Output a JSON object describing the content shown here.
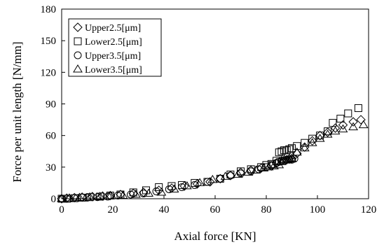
{
  "chart_data": {
    "type": "scatter",
    "title": "",
    "xlabel": "Axial force [KN]",
    "ylabel": "Force per unit length  [N/mm]",
    "xlim": [
      0,
      120
    ],
    "ylim": [
      0,
      180
    ],
    "xticks": [
      0,
      20,
      40,
      60,
      80,
      100,
      120
    ],
    "yticks": [
      0,
      30,
      60,
      90,
      120,
      150,
      180
    ],
    "grid": false,
    "legend_position": "top-left",
    "series": [
      {
        "name": "Upper2.5[μm]",
        "marker": "diamond",
        "points": [
          [
            0,
            0
          ],
          [
            2,
            0.5
          ],
          [
            5,
            1
          ],
          [
            8,
            1.5
          ],
          [
            12,
            2
          ],
          [
            16,
            2.5
          ],
          [
            19,
            3
          ],
          [
            23,
            4
          ],
          [
            28,
            5
          ],
          [
            32,
            6
          ],
          [
            38,
            8
          ],
          [
            43,
            10
          ],
          [
            48,
            12
          ],
          [
            53,
            14
          ],
          [
            58,
            16
          ],
          [
            62,
            19
          ],
          [
            66,
            22
          ],
          [
            70,
            25
          ],
          [
            74,
            27
          ],
          [
            78,
            29
          ],
          [
            82,
            31
          ],
          [
            84,
            34
          ],
          [
            86,
            36
          ],
          [
            88,
            37
          ],
          [
            89,
            38
          ],
          [
            90,
            38
          ],
          [
            92,
            43
          ],
          [
            95,
            49
          ],
          [
            98,
            55
          ],
          [
            101,
            60
          ],
          [
            104,
            63
          ],
          [
            107,
            67
          ],
          [
            110,
            70
          ],
          [
            114,
            73
          ],
          [
            117,
            75
          ]
        ]
      },
      {
        "name": "Lower2.5[μm]",
        "marker": "square",
        "points": [
          [
            0,
            0
          ],
          [
            2,
            0
          ],
          [
            5,
            0.5
          ],
          [
            8,
            1
          ],
          [
            11,
            1.5
          ],
          [
            15,
            2
          ],
          [
            19,
            3
          ],
          [
            23,
            4
          ],
          [
            28,
            6
          ],
          [
            33,
            8
          ],
          [
            38,
            11
          ],
          [
            43,
            12
          ],
          [
            47,
            13
          ],
          [
            52,
            15
          ],
          [
            57,
            16
          ],
          [
            62,
            19
          ],
          [
            66,
            23
          ],
          [
            70,
            26
          ],
          [
            74,
            28
          ],
          [
            78,
            30
          ],
          [
            80,
            32
          ],
          [
            82,
            33
          ],
          [
            84,
            36
          ],
          [
            85,
            44
          ],
          [
            86,
            45
          ],
          [
            87,
            46
          ],
          [
            88,
            46
          ],
          [
            89,
            47
          ],
          [
            90,
            48
          ],
          [
            92,
            50
          ],
          [
            95,
            53
          ],
          [
            98,
            57
          ],
          [
            101,
            60
          ],
          [
            104,
            64
          ],
          [
            106,
            72
          ],
          [
            109,
            76
          ],
          [
            112,
            81
          ],
          [
            116,
            86
          ]
        ]
      },
      {
        "name": "Upper3.5[μm]",
        "marker": "circle",
        "points": [
          [
            0,
            0
          ],
          [
            3,
            0
          ],
          [
            6,
            0.5
          ],
          [
            10,
            1
          ],
          [
            14,
            1.5
          ],
          [
            18,
            2
          ],
          [
            22,
            3
          ],
          [
            27,
            4
          ],
          [
            32,
            5
          ],
          [
            37,
            7
          ],
          [
            42,
            9
          ],
          [
            47,
            11
          ],
          [
            52,
            13
          ],
          [
            57,
            16
          ],
          [
            62,
            19
          ],
          [
            66,
            22
          ],
          [
            70,
            24
          ],
          [
            74,
            26
          ],
          [
            77,
            28
          ],
          [
            80,
            30
          ],
          [
            82,
            32
          ],
          [
            84,
            34
          ],
          [
            85,
            35
          ],
          [
            86,
            36
          ],
          [
            87,
            36
          ],
          [
            88,
            37
          ],
          [
            89,
            37
          ],
          [
            90,
            37
          ],
          [
            91,
            38
          ]
        ]
      },
      {
        "name": "Lower3.5[μm]",
        "marker": "triangle",
        "points": [
          [
            0,
            0
          ],
          [
            3,
            0.5
          ],
          [
            7,
            1
          ],
          [
            11,
            1.5
          ],
          [
            15,
            2
          ],
          [
            19,
            2.5
          ],
          [
            24,
            3
          ],
          [
            29,
            4
          ],
          [
            34,
            5
          ],
          [
            39,
            6
          ],
          [
            44,
            9
          ],
          [
            49,
            12
          ],
          [
            54,
            15
          ],
          [
            59,
            18
          ],
          [
            64,
            21
          ],
          [
            69,
            23
          ],
          [
            73,
            25
          ],
          [
            76,
            27
          ],
          [
            79,
            29
          ],
          [
            81,
            30
          ],
          [
            83,
            31
          ],
          [
            85,
            32
          ],
          [
            86,
            35
          ],
          [
            87,
            37
          ],
          [
            88,
            37
          ],
          [
            89,
            38
          ],
          [
            90,
            38
          ],
          [
            92,
            44
          ],
          [
            95,
            48
          ],
          [
            98,
            53
          ],
          [
            101,
            57
          ],
          [
            104,
            61
          ],
          [
            107,
            64
          ],
          [
            110,
            66
          ],
          [
            114,
            68
          ],
          [
            118,
            70
          ]
        ]
      }
    ]
  }
}
